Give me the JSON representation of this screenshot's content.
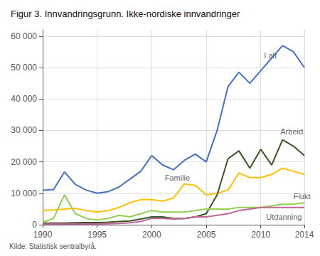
{
  "chart_data": {
    "type": "line",
    "title": "Figur 3. Innvandringsgrunn. Ikke-nordiske innvandringer",
    "source": "Kilde: Statistisk sentralbyrå.",
    "x": [
      1990,
      1991,
      1992,
      1993,
      1994,
      1995,
      1996,
      1997,
      1998,
      1999,
      2000,
      2001,
      2002,
      2003,
      2004,
      2005,
      2006,
      2007,
      2008,
      2009,
      2010,
      2011,
      2012,
      2013,
      2014
    ],
    "series": [
      {
        "name": "I alt",
        "color": "#4472c4",
        "values": [
          11000,
          11200,
          16800,
          12800,
          11000,
          10000,
          10500,
          12000,
          14500,
          17000,
          22000,
          19000,
          17500,
          20500,
          22500,
          20000,
          30000,
          44000,
          48500,
          45000,
          49000,
          53000,
          57000,
          55000,
          50000
        ]
      },
      {
        "name": "Familie",
        "color": "#ffc000",
        "values": [
          4500,
          4700,
          5000,
          5200,
          4500,
          4000,
          4500,
          5500,
          7000,
          8000,
          8000,
          7500,
          8500,
          13000,
          12500,
          9500,
          10000,
          11000,
          16500,
          15000,
          15000,
          16000,
          18000,
          17000,
          16000
        ]
      },
      {
        "name": "Arbeid",
        "color": "#375623",
        "values": [
          500,
          500,
          500,
          600,
          700,
          700,
          800,
          1000,
          1200,
          1800,
          2500,
          2500,
          2000,
          2000,
          2500,
          3500,
          9500,
          21000,
          23500,
          18000,
          24000,
          19000,
          27000,
          25000,
          22000
        ]
      },
      {
        "name": "Flukt",
        "color": "#92d050",
        "values": [
          800,
          2000,
          9500,
          3500,
          2000,
          1500,
          2000,
          3000,
          2500,
          3500,
          4500,
          4000,
          4000,
          4000,
          4500,
          5000,
          5000,
          5000,
          5500,
          5500,
          5500,
          6000,
          6500,
          6500,
          7000
        ]
      },
      {
        "name": "Utdanning",
        "color": "#c0649a",
        "values": [
          200,
          200,
          200,
          200,
          200,
          200,
          300,
          400,
          600,
          1000,
          2000,
          2000,
          1800,
          2000,
          2500,
          2500,
          3000,
          3500,
          4500,
          5000,
          5500,
          5500,
          5500,
          5500,
          5500
        ]
      }
    ],
    "annotations": [
      {
        "text": "I alt",
        "x": 2010.3,
        "y": 52500
      },
      {
        "text": "Familie",
        "x": 2001.2,
        "y": 13800
      },
      {
        "text": "Arbeid",
        "x": 2011.8,
        "y": 28500
      },
      {
        "text": "Flukt",
        "x": 2013.0,
        "y": 7800
      },
      {
        "text": "Utdanning",
        "x": 2010.5,
        "y": 1200
      }
    ],
    "xlim": [
      1990,
      2014
    ],
    "xticks": [
      1990,
      1995,
      2000,
      2005,
      2010,
      2014
    ],
    "ylim": [
      0,
      62000
    ],
    "yticks": [
      0,
      {
        "value": 10000,
        "label": "10 000"
      },
      {
        "value": 20000,
        "label": "20 000"
      },
      {
        "value": 30000,
        "label": "30 000"
      },
      {
        "value": 40000,
        "label": "40 000"
      },
      {
        "value": 50000,
        "label": "50 000"
      },
      {
        "value": 60000,
        "label": "60 000"
      }
    ],
    "grid": true
  }
}
